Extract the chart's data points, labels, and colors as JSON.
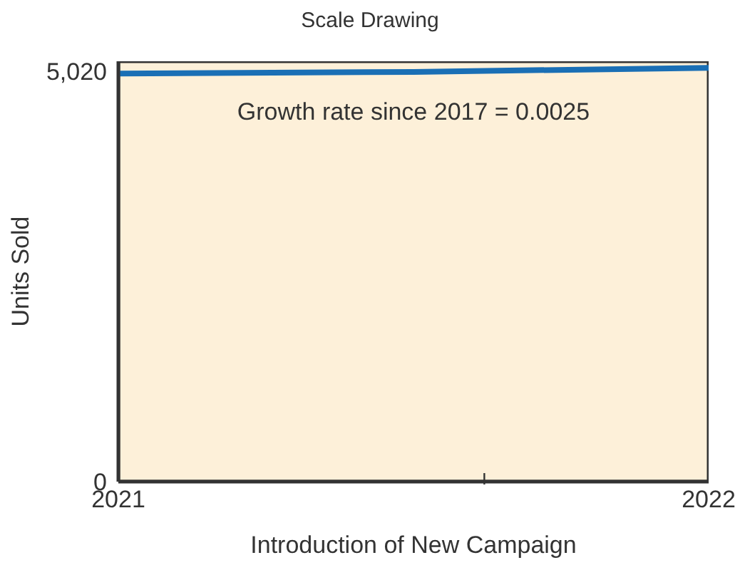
{
  "chart_data": {
    "type": "line",
    "title": "Scale Drawing",
    "xlabel": "Introduction of New Campaign",
    "ylabel": "Units Sold",
    "annotations": [
      "Growth rate since 2017 = 0.0025"
    ],
    "x": [
      2021,
      2021.5,
      2022
    ],
    "series": [
      {
        "color": "#1a6fb5",
        "values": [
          4990,
          5010,
          5060
        ]
      }
    ],
    "xlim": [
      2021,
      2022
    ],
    "xticks": [
      2021,
      {
        "value": 2021.62,
        "label": null
      },
      2022
    ],
    "ylim": [
      0,
      5140
    ],
    "yticks": [
      0,
      {
        "value": 5020,
        "label": "5,020"
      }
    ],
    "grid": false,
    "legend": false,
    "marker": "none",
    "line_style": "solid"
  }
}
